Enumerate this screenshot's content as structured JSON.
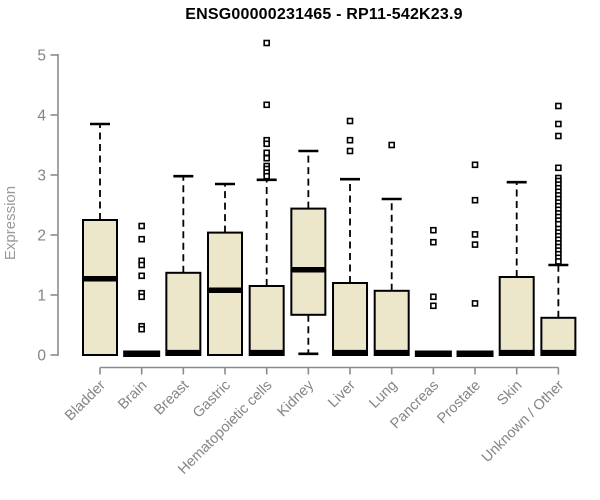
{
  "chart_data": {
    "type": "boxplot",
    "title": "ENSG00000231465 - RP11-542K23.9",
    "xlabel": "",
    "ylabel": "Expression",
    "ylim": [
      0,
      5.3
    ],
    "yticks": [
      0,
      1,
      2,
      3,
      4,
      5
    ],
    "grid": false,
    "legend": null,
    "categories": [
      "Bladder",
      "Brain",
      "Breast",
      "Gastric",
      "Hematopoietic cells",
      "Kidney",
      "Liver",
      "Lung",
      "Pancreas",
      "Prostate",
      "Skin",
      "Unknown / Other"
    ],
    "series": [
      {
        "category": "Bladder",
        "q1": 0,
        "median": 1.27,
        "q3": 2.25,
        "whisker_low": 0,
        "whisker_high": 3.85,
        "outliers": []
      },
      {
        "category": "Brain",
        "q1": 0,
        "median": 0.02,
        "q3": 0.04,
        "whisker_low": 0,
        "whisker_high": 0.04,
        "outliers": [
          2.15,
          1.93,
          1.57,
          1.5,
          1.32,
          1.03,
          0.97,
          0.48,
          0.43
        ]
      },
      {
        "category": "Breast",
        "q1": 0,
        "median": 0.04,
        "q3": 1.37,
        "whisker_low": 0,
        "whisker_high": 2.98,
        "outliers": []
      },
      {
        "category": "Gastric",
        "q1": 0,
        "median": 1.08,
        "q3": 2.04,
        "whisker_low": 0,
        "whisker_high": 2.85,
        "outliers": []
      },
      {
        "category": "Hematopoietic cells",
        "q1": 0,
        "median": 0.04,
        "q3": 1.15,
        "whisker_low": 0,
        "whisker_high": 2.92,
        "outliers": [
          5.2,
          4.17,
          3.58,
          3.52,
          3.37,
          3.28,
          3.15,
          3.1,
          3.04,
          2.98
        ]
      },
      {
        "category": "Kidney",
        "q1": 0.67,
        "median": 1.42,
        "q3": 2.44,
        "whisker_low": 0.02,
        "whisker_high": 3.4,
        "outliers": []
      },
      {
        "category": "Liver",
        "q1": 0,
        "median": 0.04,
        "q3": 1.2,
        "whisker_low": 0,
        "whisker_high": 2.93,
        "outliers": [
          3.9,
          3.58,
          3.4
        ]
      },
      {
        "category": "Lung",
        "q1": 0,
        "median": 0.04,
        "q3": 1.07,
        "whisker_low": 0,
        "whisker_high": 2.6,
        "outliers": [
          3.5
        ]
      },
      {
        "category": "Pancreas",
        "q1": 0,
        "median": 0.02,
        "q3": 0.04,
        "whisker_low": 0,
        "whisker_high": 0.04,
        "outliers": [
          2.08,
          1.88,
          0.97,
          0.82
        ]
      },
      {
        "category": "Prostate",
        "q1": 0,
        "median": 0.02,
        "q3": 0.04,
        "whisker_low": 0,
        "whisker_high": 0.04,
        "outliers": [
          3.17,
          2.58,
          2.01,
          1.84,
          0.86
        ]
      },
      {
        "category": "Skin",
        "q1": 0,
        "median": 0.04,
        "q3": 1.3,
        "whisker_low": 0,
        "whisker_high": 2.88,
        "outliers": []
      },
      {
        "category": "Unknown / Other",
        "q1": 0,
        "median": 0.04,
        "q3": 0.62,
        "whisker_low": 0,
        "whisker_high": 1.5,
        "outliers": [
          4.15,
          3.85,
          3.65,
          3.12,
          2.95,
          2.9,
          2.84,
          2.78,
          2.72,
          2.66,
          2.6,
          2.54,
          2.48,
          2.42,
          2.36,
          2.3,
          2.24,
          2.18,
          2.1,
          2.04,
          1.98,
          1.92,
          1.86,
          1.8,
          1.74,
          1.68,
          1.62,
          1.56
        ]
      }
    ],
    "colors": {
      "background": "#FFFFFF",
      "box_fill": "#ECE6CB",
      "box_stroke": "#000000",
      "median": "#000000",
      "whisker": "#000000",
      "outlier_fill": "#FFFFFF",
      "outlier_stroke": "#000000",
      "axis": "#8C8C8C",
      "tick_label": "#848484",
      "category_label": "#848484",
      "ylabel": "#9A9A9A",
      "title": "#000000"
    }
  }
}
